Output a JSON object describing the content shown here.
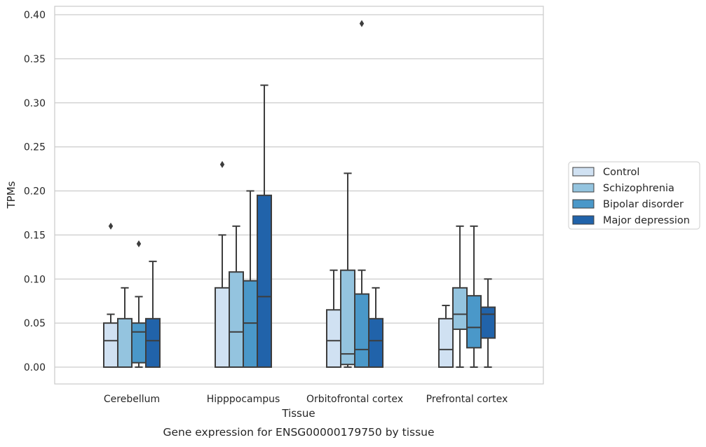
{
  "chart_data": {
    "type": "box",
    "title": "",
    "caption": "Gene expression for ENSG00000179750 by tissue",
    "xlabel": "Tissue",
    "ylabel": "TPMs",
    "ylim": [
      -0.018,
      0.41
    ],
    "yticks": [
      0.0,
      0.05,
      0.1,
      0.15,
      0.2,
      0.25,
      0.3,
      0.35,
      0.4
    ],
    "ytick_labels": [
      "0.00",
      "0.05",
      "0.10",
      "0.15",
      "0.20",
      "0.25",
      "0.30",
      "0.35",
      "0.40"
    ],
    "categories": [
      "Cerebellum",
      "Hipppocampus",
      "Orbitofrontal cortex",
      "Prefrontal cortex"
    ],
    "grid": true,
    "legend_position": "right",
    "series": [
      {
        "name": "Control",
        "color": "#d0e1f2",
        "boxes": [
          {
            "whislo": 0.0,
            "q1": 0.0,
            "med": 0.03,
            "q3": 0.05,
            "whishi": 0.06,
            "fliers": [
              0.16
            ]
          },
          {
            "whislo": 0.0,
            "q1": 0.0,
            "med": 0.0,
            "q3": 0.09,
            "whishi": 0.15,
            "fliers": [
              0.23
            ]
          },
          {
            "whislo": 0.0,
            "q1": 0.0,
            "med": 0.03,
            "q3": 0.065,
            "whishi": 0.11,
            "fliers": []
          },
          {
            "whislo": 0.0,
            "q1": 0.0,
            "med": 0.02,
            "q3": 0.055,
            "whishi": 0.07,
            "fliers": []
          }
        ]
      },
      {
        "name": "Schizophrenia",
        "color": "#94c4df",
        "boxes": [
          {
            "whislo": 0.0,
            "q1": 0.0,
            "med": 0.0,
            "q3": 0.055,
            "whishi": 0.09,
            "fliers": []
          },
          {
            "whislo": 0.0,
            "q1": 0.0,
            "med": 0.04,
            "q3": 0.108,
            "whishi": 0.16,
            "fliers": []
          },
          {
            "whislo": 0.0,
            "q1": 0.003,
            "med": 0.015,
            "q3": 0.11,
            "whishi": 0.22,
            "fliers": []
          },
          {
            "whislo": 0.0,
            "q1": 0.043,
            "med": 0.06,
            "q3": 0.09,
            "whishi": 0.16,
            "fliers": []
          }
        ]
      },
      {
        "name": "Bipolar disorder",
        "color": "#4a98c9",
        "boxes": [
          {
            "whislo": 0.0,
            "q1": 0.005,
            "med": 0.04,
            "q3": 0.05,
            "whishi": 0.08,
            "fliers": [
              0.14
            ]
          },
          {
            "whislo": 0.0,
            "q1": 0.0,
            "med": 0.05,
            "q3": 0.098,
            "whishi": 0.2,
            "fliers": []
          },
          {
            "whislo": 0.0,
            "q1": 0.0,
            "med": 0.02,
            "q3": 0.083,
            "whishi": 0.11,
            "fliers": [
              0.39
            ]
          },
          {
            "whislo": 0.0,
            "q1": 0.022,
            "med": 0.045,
            "q3": 0.081,
            "whishi": 0.16,
            "fliers": []
          }
        ]
      },
      {
        "name": "Major depression",
        "color": "#2163aa",
        "boxes": [
          {
            "whislo": 0.0,
            "q1": 0.0,
            "med": 0.03,
            "q3": 0.055,
            "whishi": 0.12,
            "fliers": []
          },
          {
            "whislo": 0.0,
            "q1": 0.0,
            "med": 0.08,
            "q3": 0.195,
            "whishi": 0.32,
            "fliers": []
          },
          {
            "whislo": 0.0,
            "q1": 0.0,
            "med": 0.03,
            "q3": 0.055,
            "whishi": 0.09,
            "fliers": []
          },
          {
            "whislo": 0.0,
            "q1": 0.033,
            "med": 0.06,
            "q3": 0.068,
            "whishi": 0.1,
            "fliers": []
          }
        ]
      }
    ]
  }
}
